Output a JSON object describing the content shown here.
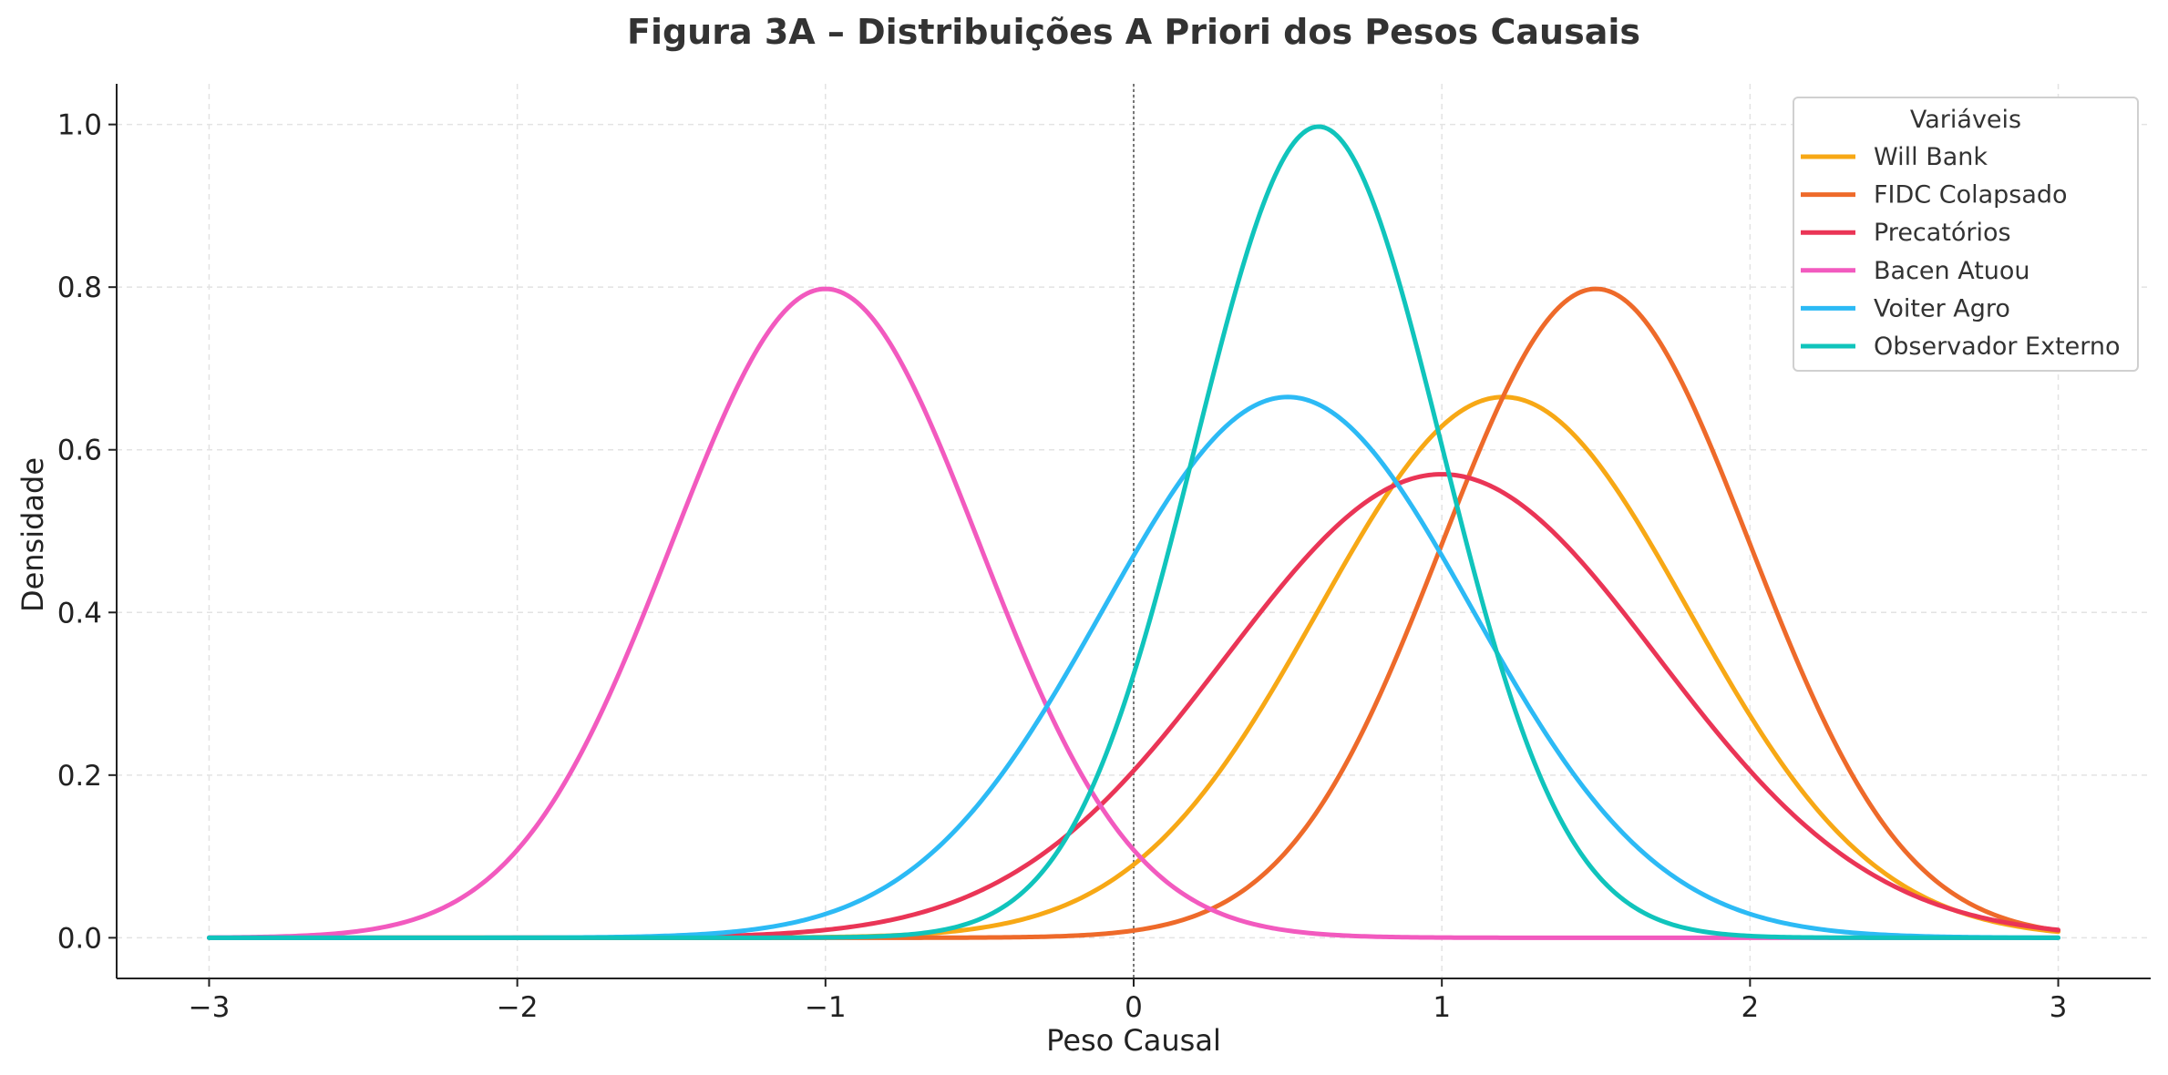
{
  "chart_data": {
    "type": "line",
    "title": "Figura 3A – Distribuições A Priori dos Pesos Causais",
    "xlabel": "Peso Causal",
    "ylabel": "Densidade",
    "xlim": [
      -3.3,
      3.3
    ],
    "ylim": [
      -0.05,
      1.05
    ],
    "xticks": [
      -3,
      -2,
      -1,
      0,
      1,
      2,
      3
    ],
    "xtick_labels": [
      "−3",
      "−2",
      "−1",
      "0",
      "1",
      "2",
      "3"
    ],
    "yticks": [
      0.0,
      0.2,
      0.4,
      0.6,
      0.8,
      1.0
    ],
    "ytick_labels": [
      "0.0",
      "0.2",
      "0.4",
      "0.6",
      "0.8",
      "1.0"
    ],
    "grid": true,
    "reference_line_x": 0,
    "x_domain": [
      -3,
      3
    ],
    "legend": {
      "title": "Variáveis",
      "position": "top-right"
    },
    "series": [
      {
        "name": "Will Bank",
        "color": "#F7A815",
        "distribution": "normal",
        "mean": 1.2,
        "sd": 0.6
      },
      {
        "name": "FIDC Colapsado",
        "color": "#EE6A2A",
        "distribution": "normal",
        "mean": 1.5,
        "sd": 0.5
      },
      {
        "name": "Precatórios",
        "color": "#EA3556",
        "distribution": "normal",
        "mean": 1.0,
        "sd": 0.7
      },
      {
        "name": "Bacen Atuou",
        "color": "#F25ABF",
        "distribution": "normal",
        "mean": -1.0,
        "sd": 0.5
      },
      {
        "name": "Voiter Agro",
        "color": "#2CBAF5",
        "distribution": "normal",
        "mean": 0.5,
        "sd": 0.6
      },
      {
        "name": "Observador Externo",
        "color": "#10C4BC",
        "distribution": "normal",
        "mean": 0.6,
        "sd": 0.4
      }
    ]
  }
}
